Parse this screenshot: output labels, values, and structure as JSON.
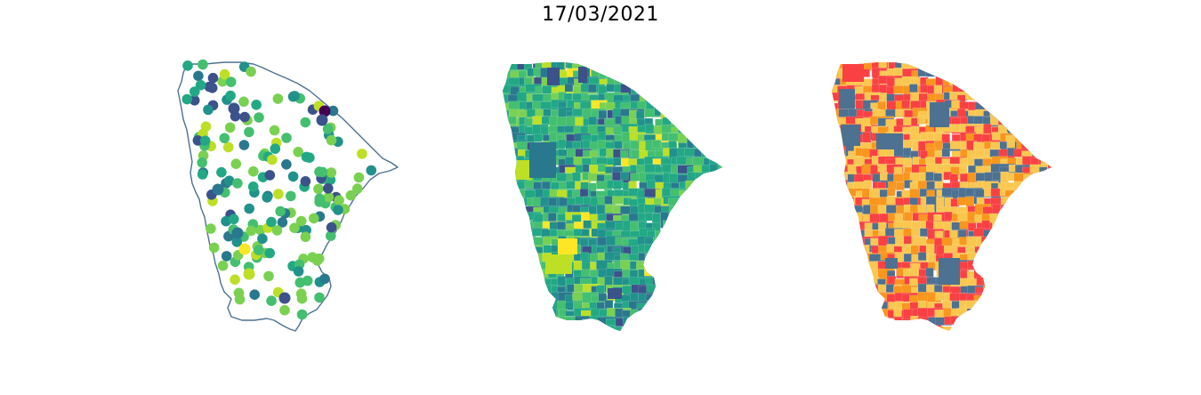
{
  "title": "17/03/2021",
  "palettes": {
    "viridis": [
      "#440154",
      "#3b528b",
      "#2a788e",
      "#21918c",
      "#22a884",
      "#44bf70",
      "#7ad151",
      "#bddf26",
      "#fde725"
    ],
    "categorical": [
      "#4d7191",
      "#f94144",
      "#f8961e",
      "#f9c74f"
    ]
  },
  "panels": [
    {
      "id": "points",
      "kind": "proportional-points",
      "outline_color": "#4d7191"
    },
    {
      "id": "seq",
      "kind": "choropleth-sequential"
    },
    {
      "id": "cat",
      "kind": "choropleth-categorical"
    }
  ]
}
